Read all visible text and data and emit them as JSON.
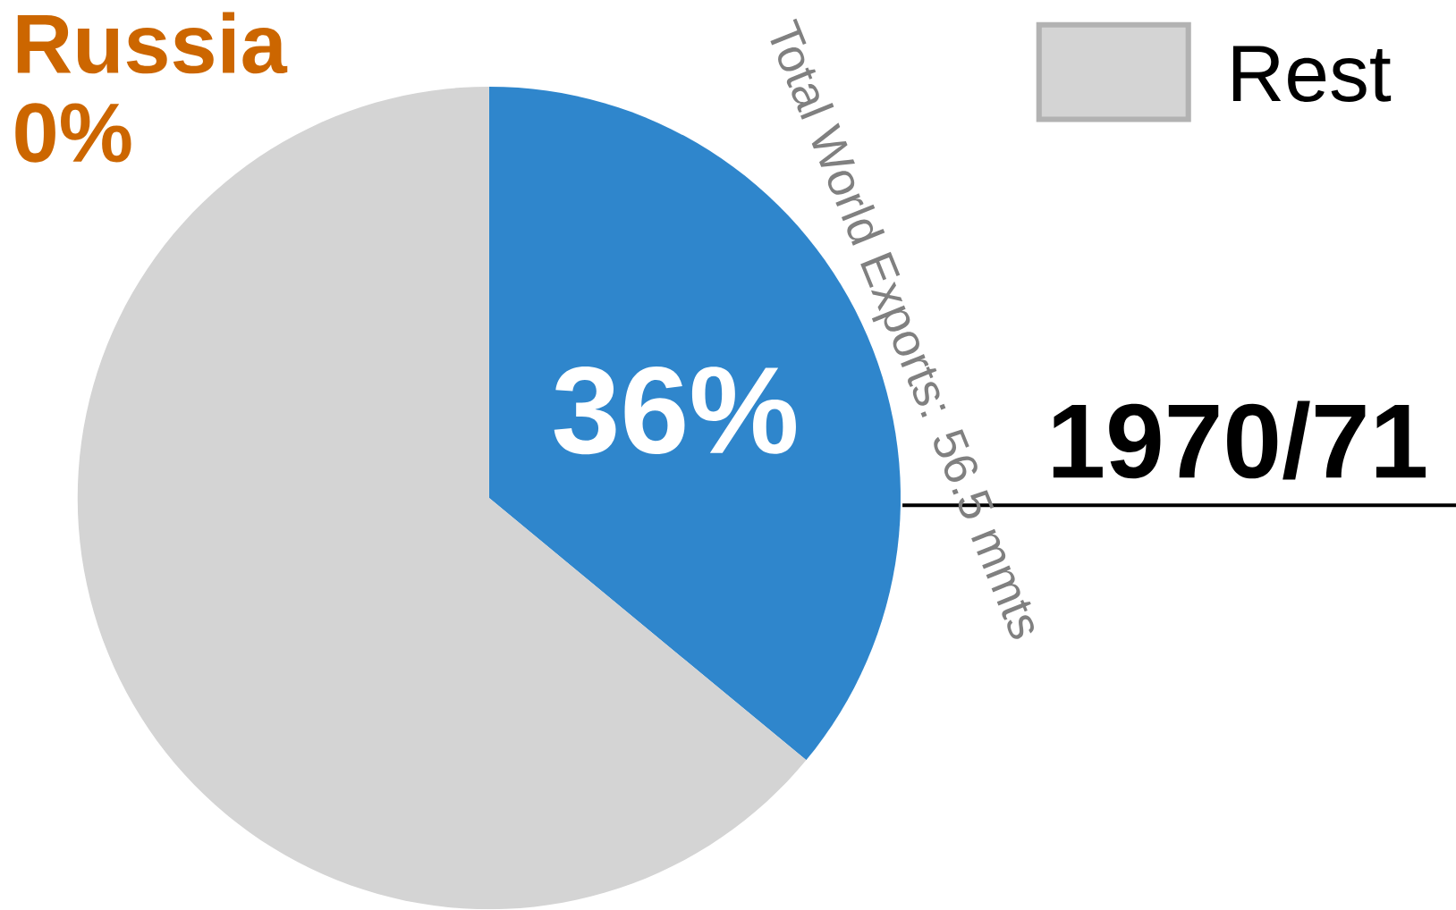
{
  "chart_data": {
    "type": "pie",
    "title": "1970/71",
    "categories": [
      null,
      "Rest"
    ],
    "values": [
      36,
      64
    ],
    "colors": [
      "#2f86cc",
      "#d4d4d4"
    ],
    "value_labels": [
      "36%",
      null
    ],
    "legend": "top right",
    "annotations": [
      "Total World Exports: 56.5 mmts",
      "Russia",
      "0%"
    ]
  }
}
